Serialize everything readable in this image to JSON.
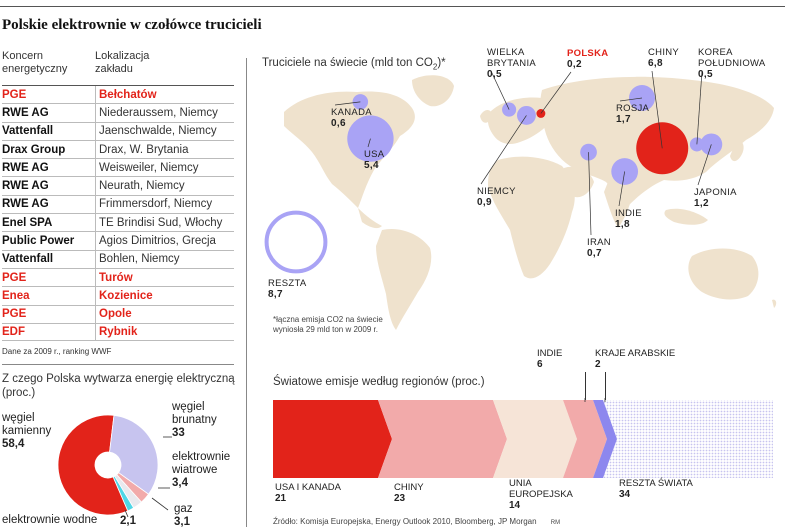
{
  "title": "Polskie elektrownie w czołówce trucicieli",
  "plants_table": {
    "headers": [
      "Koncern\nenergetyczny",
      "Lokalizacja\nzakładu"
    ],
    "rows": [
      {
        "company": "PGE",
        "location": "Bełchatów",
        "polish": true
      },
      {
        "company": "RWE AG",
        "location": "Niederaussem, Niemcy",
        "polish": false
      },
      {
        "company": "Vattenfall",
        "location": "Jaenschwalde, Niemcy",
        "polish": false
      },
      {
        "company": "Drax Group",
        "location": "Drax, W. Brytania",
        "polish": false
      },
      {
        "company": "RWE AG",
        "location": "Weisweiler, Niemcy",
        "polish": false
      },
      {
        "company": "RWE AG",
        "location": "Neurath, Niemcy",
        "polish": false
      },
      {
        "company": "RWE AG",
        "location": "Frimmersdorf, Niemcy",
        "polish": false
      },
      {
        "company": "Enel SPA",
        "location": "TE Brindisi Sud, Włochy",
        "polish": false
      },
      {
        "company": "Public Power",
        "location": "Agios Dimitrios, Grecja",
        "polish": false
      },
      {
        "company": "Vattenfall",
        "location": "Bohlen, Niemcy",
        "polish": false
      },
      {
        "company": "PGE",
        "location": "Turów",
        "polish": true
      },
      {
        "company": "Enea",
        "location": "Kozienice",
        "polish": true
      },
      {
        "company": "PGE",
        "location": "Opole",
        "polish": true
      },
      {
        "company": "EDF",
        "location": "Rybnik",
        "polish": true
      }
    ],
    "note": "Dane za 2009 r., ranking WWF"
  },
  "colors": {
    "red": "#e2231a",
    "lavender": "#a9a3f5",
    "land": "#efe2cd",
    "light_red": "#f2aaaa",
    "cream": "#f6e4d7",
    "purple": "#8d87ee",
    "cyan": "#4fd6e6",
    "pie_lavender": "#c7c4ef"
  },
  "chart_data": [
    {
      "type": "scatter",
      "title": "Truciciele na świecie (mld ton CO",
      "title_sub": "2",
      "title_tail": ")*",
      "unit": "mld ton CO2",
      "points": [
        {
          "name": "KANADA",
          "value": "0,6",
          "num": 0.6,
          "lon": -105,
          "lat": 58,
          "color": "#a9a3f5"
        },
        {
          "name": "USA",
          "value": "5,4",
          "num": 5.4,
          "lon": -98,
          "lat": 39,
          "color": "#a9a3f5"
        },
        {
          "name": "WIELKA BRYTANIA",
          "value": "0,5",
          "num": 0.5,
          "lon": -2,
          "lat": 54,
          "color": "#a9a3f5"
        },
        {
          "name": "POLSKA",
          "value": "0,2",
          "num": 0.2,
          "lon": 20,
          "lat": 52,
          "color": "#e2231a"
        },
        {
          "name": "NIEMCY",
          "value": "0,9",
          "num": 0.9,
          "lon": 10,
          "lat": 51,
          "color": "#a9a3f5"
        },
        {
          "name": "ROSJA",
          "value": "1,7",
          "num": 1.7,
          "lon": 90,
          "lat": 60,
          "color": "#a9a3f5"
        },
        {
          "name": "CHINY",
          "value": "6,8",
          "num": 6.8,
          "lon": 104,
          "lat": 34,
          "color": "#e2231a"
        },
        {
          "name": "KOREA POŁUDNIOWA",
          "value": "0,5",
          "num": 0.5,
          "lon": 128,
          "lat": 36,
          "color": "#a9a3f5"
        },
        {
          "name": "JAPONIA",
          "value": "1,2",
          "num": 1.2,
          "lon": 138,
          "lat": 36,
          "color": "#a9a3f5"
        },
        {
          "name": "INDIE",
          "value": "1,8",
          "num": 1.8,
          "lon": 78,
          "lat": 22,
          "color": "#a9a3f5"
        },
        {
          "name": "IRAN",
          "value": "0,7",
          "num": 0.7,
          "lon": 53,
          "lat": 32,
          "color": "#a9a3f5"
        },
        {
          "name": "RESZTA",
          "value": "8,7",
          "num": 8.7,
          "color": "#a9a3f5",
          "outline": true
        }
      ],
      "note": "*łączna emisja CO2 na świecie wyniosła 29 mld ton w 2009 r."
    },
    {
      "type": "pie",
      "title": "Z czego Polska wytwarza energię elektryczną (proc.)",
      "slices": [
        {
          "name": "węgiel kamienny",
          "value": 58.4,
          "label": "58,4",
          "color": "#e2231a"
        },
        {
          "name": "elektrownie wodne",
          "value": 2.1,
          "label": "2,1",
          "color": "#4fd6e6"
        },
        {
          "name": "gaz",
          "value": 3.1,
          "label": "3,1",
          "color": "#e9e9ee"
        },
        {
          "name": "elektrownie wiatrowe",
          "value": 3.4,
          "label": "3,4",
          "color": "#f2aaaa"
        },
        {
          "name": "węgiel brunatny",
          "value": 33,
          "label": "33",
          "color": "#c7c4ef"
        }
      ]
    },
    {
      "type": "bar",
      "title": "Światowe emisje według regionów (proc.)",
      "segments": [
        {
          "name": "USA I KANADA",
          "value": 21,
          "label": "21",
          "color": "#e2231a"
        },
        {
          "name": "CHINY",
          "value": 23,
          "label": "23",
          "color": "#f2aaaa"
        },
        {
          "name": "UNIA EUROPEJSKA",
          "value": 14,
          "label": "14",
          "color": "#f6e4d7"
        },
        {
          "name": "INDIE",
          "value": 6,
          "label": "6",
          "color": "#f2aaaa"
        },
        {
          "name": "KRAJE ARABSKIE",
          "value": 2,
          "label": "2",
          "color": "#8d87ee"
        },
        {
          "name": "RESZTA ŚWIATA",
          "value": 34,
          "label": "34",
          "color": "#c7c4ef"
        }
      ]
    }
  ],
  "source": "Źródło: Komisja Europejska, Energy Outlook 2010, Bloomberg, JP Morgan",
  "credit": "RM"
}
